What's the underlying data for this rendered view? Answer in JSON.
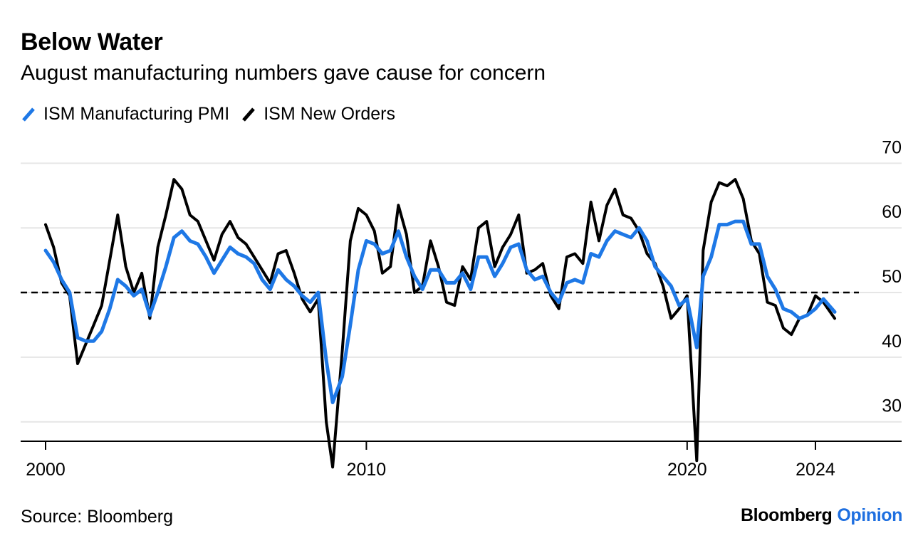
{
  "header": {
    "title": "Below Water",
    "subtitle": "August manufacturing numbers gave cause for concern"
  },
  "legend": [
    {
      "label": "ISM Manufacturing PMI",
      "color": "#1e78e6"
    },
    {
      "label": "ISM New Orders",
      "color": "#000000"
    }
  ],
  "footer": {
    "source": "Source: Bloomberg",
    "brand_main": "Bloomberg",
    "brand_accent": "Opinion"
  },
  "chart_data": {
    "type": "line",
    "title": "Below Water",
    "subtitle": "August manufacturing numbers gave cause for concern",
    "xlabel": "",
    "ylabel": "",
    "xlim": [
      1999.2,
      2026.7
    ],
    "ylim": [
      27,
      74
    ],
    "x_ticks": [
      2000,
      2010,
      2020,
      2024
    ],
    "x_tick_labels": [
      "2000",
      "2010",
      "2020",
      "2024"
    ],
    "y_ticks": [
      30,
      40,
      50,
      60,
      70
    ],
    "y_tick_labels": [
      "30",
      "40",
      "50",
      "60",
      "70"
    ],
    "y_axis_side": "right",
    "reference_line": {
      "y": 50,
      "style": "dashed"
    },
    "grid": "horizontal",
    "legend_position": "top-left",
    "series": [
      {
        "name": "ISM Manufacturing PMI",
        "color": "#1e78e6",
        "x": [
          2000.0,
          2000.25,
          2000.5,
          2000.75,
          2001.0,
          2001.25,
          2001.5,
          2001.75,
          2002.0,
          2002.25,
          2002.5,
          2002.75,
          2003.0,
          2003.25,
          2003.5,
          2003.75,
          2004.0,
          2004.25,
          2004.5,
          2004.75,
          2005.0,
          2005.25,
          2005.5,
          2005.75,
          2006.0,
          2006.25,
          2006.5,
          2006.75,
          2007.0,
          2007.25,
          2007.5,
          2007.75,
          2008.0,
          2008.25,
          2008.5,
          2008.75,
          2008.95,
          2009.25,
          2009.5,
          2009.75,
          2010.0,
          2010.25,
          2010.5,
          2010.75,
          2011.0,
          2011.25,
          2011.5,
          2011.75,
          2012.0,
          2012.25,
          2012.5,
          2012.75,
          2013.0,
          2013.25,
          2013.5,
          2013.75,
          2014.0,
          2014.25,
          2014.5,
          2014.75,
          2015.0,
          2015.25,
          2015.5,
          2015.75,
          2016.0,
          2016.25,
          2016.5,
          2016.75,
          2017.0,
          2017.25,
          2017.5,
          2017.75,
          2018.0,
          2018.25,
          2018.5,
          2018.75,
          2019.0,
          2019.25,
          2019.5,
          2019.75,
          2020.0,
          2020.3,
          2020.5,
          2020.75,
          2021.0,
          2021.25,
          2021.5,
          2021.75,
          2022.0,
          2022.25,
          2022.5,
          2022.75,
          2023.0,
          2023.25,
          2023.5,
          2023.75,
          2024.0,
          2024.25,
          2024.6
        ],
        "y": [
          56.5,
          54.7,
          52.0,
          50.0,
          43.0,
          42.5,
          42.5,
          44.0,
          47.5,
          52.0,
          51.0,
          49.5,
          50.5,
          46.5,
          50.0,
          54.0,
          58.5,
          59.5,
          58.0,
          57.5,
          55.5,
          53.0,
          55.0,
          57.0,
          56.0,
          55.5,
          54.5,
          52.0,
          50.5,
          53.5,
          52.0,
          51.0,
          49.5,
          48.5,
          50.0,
          39.5,
          33.0,
          37.0,
          45.0,
          53.5,
          58.0,
          57.5,
          56.0,
          56.5,
          59.5,
          55.5,
          52.5,
          50.5,
          53.5,
          53.5,
          51.5,
          51.5,
          53.0,
          50.5,
          55.5,
          55.5,
          52.5,
          54.5,
          57.0,
          57.5,
          53.5,
          52.0,
          52.5,
          50.0,
          48.5,
          51.5,
          52.0,
          51.5,
          56.0,
          55.5,
          58.0,
          59.5,
          59.0,
          58.5,
          60.0,
          58.0,
          54.0,
          52.5,
          51.0,
          48.0,
          49.0,
          41.5,
          52.5,
          55.5,
          60.5,
          60.5,
          61.0,
          61.0,
          57.5,
          57.5,
          52.5,
          50.5,
          47.5,
          47.0,
          46.0,
          46.5,
          47.5,
          49.0,
          47.0
        ]
      },
      {
        "name": "ISM New Orders",
        "color": "#000000",
        "x": [
          2000.0,
          2000.25,
          2000.5,
          2000.75,
          2001.0,
          2001.25,
          2001.5,
          2001.75,
          2002.0,
          2002.25,
          2002.5,
          2002.75,
          2003.0,
          2003.25,
          2003.5,
          2003.75,
          2004.0,
          2004.25,
          2004.5,
          2004.75,
          2005.0,
          2005.25,
          2005.5,
          2005.75,
          2006.0,
          2006.25,
          2006.5,
          2006.75,
          2007.0,
          2007.25,
          2007.5,
          2007.75,
          2008.0,
          2008.25,
          2008.5,
          2008.75,
          2008.95,
          2009.25,
          2009.5,
          2009.75,
          2010.0,
          2010.25,
          2010.5,
          2010.75,
          2011.0,
          2011.25,
          2011.5,
          2011.75,
          2012.0,
          2012.25,
          2012.5,
          2012.75,
          2013.0,
          2013.25,
          2013.5,
          2013.75,
          2014.0,
          2014.25,
          2014.5,
          2014.75,
          2015.0,
          2015.25,
          2015.5,
          2015.75,
          2016.0,
          2016.25,
          2016.5,
          2016.75,
          2017.0,
          2017.25,
          2017.5,
          2017.75,
          2018.0,
          2018.25,
          2018.5,
          2018.75,
          2019.0,
          2019.25,
          2019.5,
          2019.75,
          2020.0,
          2020.3,
          2020.5,
          2020.75,
          2021.0,
          2021.25,
          2021.5,
          2021.75,
          2022.0,
          2022.25,
          2022.5,
          2022.75,
          2023.0,
          2023.25,
          2023.5,
          2023.75,
          2024.0,
          2024.25,
          2024.6
        ],
        "y": [
          60.5,
          57.0,
          51.5,
          49.5,
          39.0,
          42.0,
          45.0,
          48.0,
          55.0,
          62.0,
          54.0,
          50.0,
          53.0,
          46.0,
          57.0,
          62.0,
          67.5,
          66.0,
          62.0,
          61.0,
          58.0,
          55.0,
          59.0,
          61.0,
          58.5,
          57.5,
          55.5,
          53.5,
          51.5,
          56.0,
          56.5,
          53.0,
          49.0,
          47.0,
          49.0,
          30.0,
          23.0,
          41.0,
          58.0,
          63.0,
          62.0,
          59.5,
          53.0,
          54.0,
          63.5,
          59.0,
          50.0,
          51.0,
          58.0,
          54.0,
          48.5,
          48.0,
          54.0,
          52.0,
          60.0,
          61.0,
          54.0,
          57.0,
          59.0,
          62.0,
          53.0,
          53.5,
          54.5,
          49.5,
          47.5,
          55.5,
          56.0,
          54.5,
          64.0,
          58.0,
          63.5,
          66.0,
          62.0,
          61.5,
          59.5,
          56.0,
          54.5,
          51.0,
          46.0,
          47.5,
          49.5,
          24.0,
          56.5,
          64.0,
          67.0,
          66.5,
          67.5,
          64.5,
          58.0,
          56.0,
          48.5,
          48.0,
          44.5,
          43.5,
          46.0,
          46.5,
          49.5,
          48.5,
          46.0
        ]
      }
    ]
  }
}
